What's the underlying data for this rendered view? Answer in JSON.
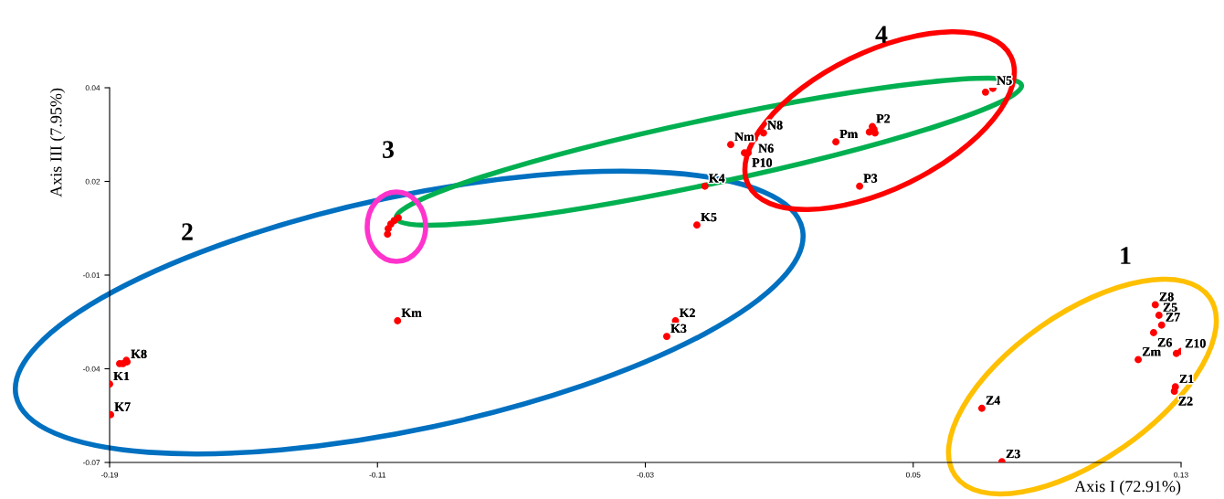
{
  "chart_data": {
    "type": "scatter",
    "xlabel": "Axis I (72.91%)",
    "ylabel": "Axis III (7.95%)",
    "xlim": [
      -0.19,
      0.13
    ],
    "xticks": [
      -0.19,
      -0.11,
      -0.03,
      0.05,
      0.13
    ],
    "ylim": [
      -0.065,
      0.045
    ],
    "yticks": [
      {
        "value": 0.045,
        "label": "0.04"
      },
      {
        "value": 0.0175,
        "label": "0.02"
      },
      {
        "value": -0.01,
        "label": "-0.01"
      },
      {
        "value": -0.0375,
        "label": "-0.04"
      },
      {
        "value": -0.065,
        "label": "-0.07"
      }
    ],
    "grid": false,
    "legend": false,
    "marker": "circle",
    "series": [
      {
        "color": "#ff0000",
        "x": [
          -0.19,
          -0.1897,
          -0.187,
          -0.186,
          -0.185,
          -0.1848,
          -0.104,
          -0.021,
          -0.0236,
          -0.0146,
          -0.0122,
          -0.107,
          -0.1068,
          -0.106,
          -0.105,
          -0.1038,
          -0.0045,
          0.0053,
          0.0026,
          0.0007,
          -0.0004,
          0.0269,
          0.034,
          0.0378,
          0.0383,
          0.0386,
          0.0369,
          0.0716,
          0.0738,
          0.1223,
          0.1234,
          0.1242,
          0.1218,
          0.1286,
          0.13,
          0.1172,
          0.1283,
          0.128,
          0.0705,
          0.0765
        ],
        "values": [
          -0.042,
          -0.051,
          -0.036,
          -0.036,
          -0.035,
          -0.0355,
          -0.0234,
          -0.0234,
          -0.028,
          0.0047,
          0.0161,
          0.002,
          0.0036,
          0.005,
          0.006,
          0.0068,
          0.0283,
          0.0317,
          0.0301,
          0.0259,
          0.0259,
          0.0291,
          0.0161,
          0.0336,
          0.0328,
          0.0317,
          0.032,
          0.0437,
          0.0448,
          -0.0187,
          -0.0218,
          -0.0247,
          -0.0269,
          -0.033,
          -0.0324,
          -0.0348,
          -0.0428,
          -0.0441,
          -0.0491,
          -0.0648
        ]
      }
    ],
    "annotations": [
      {
        "text": "K1",
        "x": -0.19,
        "y": -0.042
      },
      {
        "text": "K7",
        "x": -0.1897,
        "y": -0.051
      },
      {
        "text": "K8",
        "x": -0.1848,
        "y": -0.0355
      },
      {
        "text": "Km",
        "x": -0.104,
        "y": -0.0234
      },
      {
        "text": "K2",
        "x": -0.021,
        "y": -0.0234
      },
      {
        "text": "K3",
        "x": -0.0236,
        "y": -0.028
      },
      {
        "text": "K5",
        "x": -0.0146,
        "y": 0.0047
      },
      {
        "text": "K4",
        "x": -0.0122,
        "y": 0.0161
      },
      {
        "text": "Nm",
        "x": -0.0045,
        "y": 0.0283
      },
      {
        "text": "N8",
        "x": 0.0053,
        "y": 0.0317
      },
      {
        "text": "N6",
        "x": 0.0026,
        "y": 0.0301
      },
      {
        "text": "P10",
        "x": 0.0007,
        "y": 0.0259
      },
      {
        "text": "Pm",
        "x": 0.0269,
        "y": 0.0291
      },
      {
        "text": "P3",
        "x": 0.034,
        "y": 0.0161
      },
      {
        "text": "P2",
        "x": 0.0378,
        "y": 0.0336
      },
      {
        "text": "N5",
        "x": 0.0738,
        "y": 0.0448
      },
      {
        "text": "Z8",
        "x": 0.1223,
        "y": -0.0187
      },
      {
        "text": "Z5",
        "x": 0.1234,
        "y": -0.0218
      },
      {
        "text": "Z7",
        "x": 0.1242,
        "y": -0.0247
      },
      {
        "text": "Z6",
        "x": 0.1218,
        "y": -0.0269
      },
      {
        "text": "Z10",
        "x": 0.13,
        "y": -0.0324
      },
      {
        "text": "Zm",
        "x": 0.1172,
        "y": -0.0348
      },
      {
        "text": "Z1",
        "x": 0.1283,
        "y": -0.0428
      },
      {
        "text": "Z2",
        "x": 0.128,
        "y": -0.0441
      },
      {
        "text": "Z4",
        "x": 0.0705,
        "y": -0.0491
      },
      {
        "text": "Z3",
        "x": 0.0765,
        "y": -0.0648
      },
      "1",
      "2",
      "3",
      "4"
    ]
  }
}
